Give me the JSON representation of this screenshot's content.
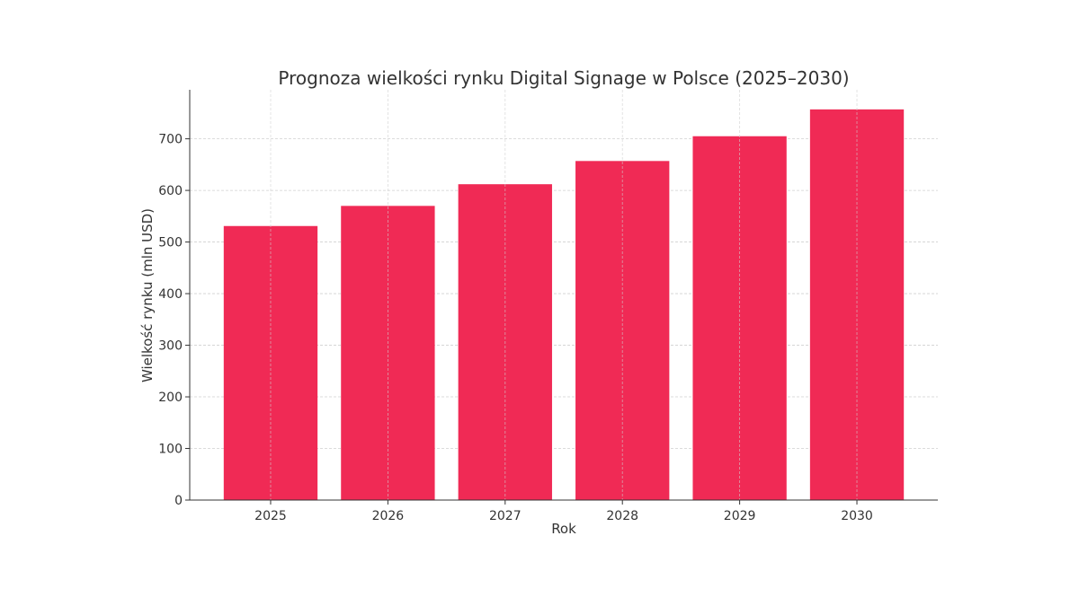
{
  "chart_data": {
    "type": "bar",
    "title": "Prognoza wielkości rynku Digital Signage w Polsce (2025–2030)",
    "xlabel": "Rok",
    "ylabel": "Wielkość rynku (mln USD)",
    "categories": [
      "2025",
      "2026",
      "2027",
      "2028",
      "2029",
      "2030"
    ],
    "values": [
      531,
      570,
      612,
      657,
      705,
      757
    ],
    "ylim": [
      0,
      795
    ],
    "yticks": [
      0,
      100,
      200,
      300,
      400,
      500,
      600,
      700
    ],
    "grid": true,
    "bar_color": "#f02a55"
  }
}
